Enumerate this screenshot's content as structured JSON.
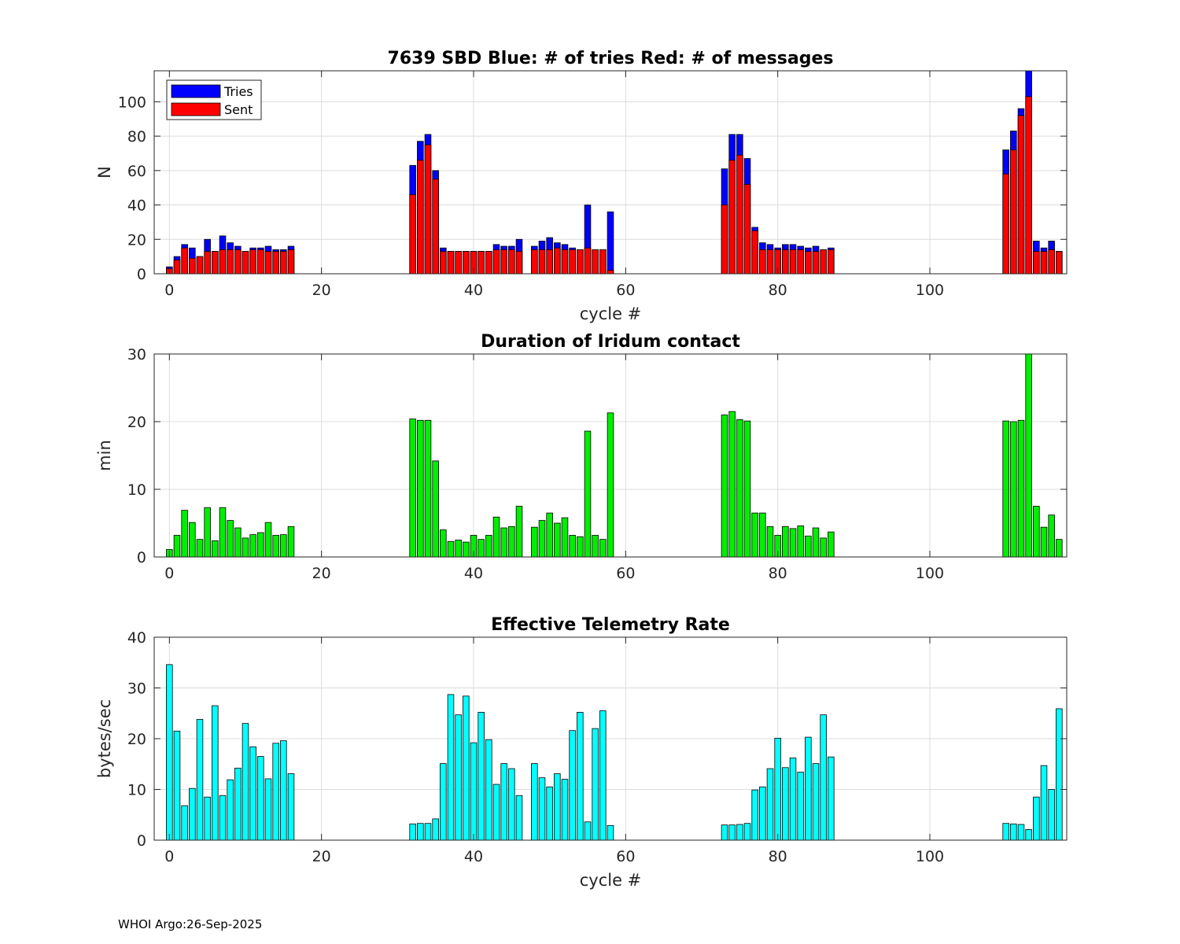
{
  "footer": "WHOI Argo:26-Sep-2025",
  "chart_data": [
    {
      "type": "bar",
      "title": "7639 SBD  Blue: # of tries   Red: # of messages",
      "xlabel": "cycle #",
      "ylabel": "N",
      "xlim": [
        -2,
        118
      ],
      "ylim": [
        0,
        118
      ],
      "xticks": [
        0,
        20,
        40,
        60,
        80,
        100
      ],
      "yticks": [
        0,
        20,
        40,
        60,
        80,
        100
      ],
      "grid": true,
      "legend": {
        "position": "top-left",
        "entries": [
          {
            "label": "Tries",
            "color": "#0000ff"
          },
          {
            "label": "Sent",
            "color": "#ff0000"
          }
        ]
      },
      "series": [
        {
          "name": "Tries",
          "color": "#0000ff",
          "overlay": true,
          "points": [
            [
              0,
              4
            ],
            [
              1,
              10
            ],
            [
              2,
              17
            ],
            [
              3,
              15
            ],
            [
              4,
              10
            ],
            [
              5,
              20
            ],
            [
              6,
              13
            ],
            [
              7,
              22
            ],
            [
              8,
              18
            ],
            [
              9,
              16
            ],
            [
              10,
              13
            ],
            [
              11,
              15
            ],
            [
              12,
              15
            ],
            [
              13,
              16
            ],
            [
              14,
              14
            ],
            [
              15,
              14
            ],
            [
              16,
              16
            ],
            [
              32,
              63
            ],
            [
              33,
              77
            ],
            [
              34,
              81
            ],
            [
              35,
              60
            ],
            [
              36,
              15
            ],
            [
              37,
              13
            ],
            [
              38,
              13
            ],
            [
              39,
              13
            ],
            [
              40,
              13
            ],
            [
              41,
              13
            ],
            [
              42,
              13
            ],
            [
              43,
              17
            ],
            [
              44,
              16
            ],
            [
              45,
              16
            ],
            [
              46,
              20
            ],
            [
              48,
              16
            ],
            [
              49,
              19
            ],
            [
              50,
              21
            ],
            [
              51,
              18
            ],
            [
              52,
              17
            ],
            [
              53,
              15
            ],
            [
              54,
              14
            ],
            [
              55,
              40
            ],
            [
              56,
              14
            ],
            [
              57,
              14
            ],
            [
              58,
              36
            ],
            [
              73,
              61
            ],
            [
              74,
              81
            ],
            [
              75,
              81
            ],
            [
              76,
              67
            ],
            [
              77,
              27
            ],
            [
              78,
              18
            ],
            [
              79,
              17
            ],
            [
              80,
              15
            ],
            [
              81,
              17
            ],
            [
              82,
              17
            ],
            [
              83,
              16
            ],
            [
              84,
              15
            ],
            [
              85,
              16
            ],
            [
              86,
              14
            ],
            [
              87,
              15
            ],
            [
              110,
              72
            ],
            [
              111,
              83
            ],
            [
              112,
              96
            ],
            [
              113,
              118
            ],
            [
              114,
              19
            ],
            [
              115,
              15
            ],
            [
              116,
              19
            ],
            [
              117,
              13
            ]
          ]
        },
        {
          "name": "Sent",
          "color": "#ff0000",
          "points": [
            [
              0,
              3
            ],
            [
              1,
              8
            ],
            [
              2,
              15
            ],
            [
              3,
              9
            ],
            [
              4,
              10
            ],
            [
              5,
              13
            ],
            [
              6,
              13
            ],
            [
              7,
              14
            ],
            [
              8,
              14
            ],
            [
              9,
              14
            ],
            [
              10,
              13
            ],
            [
              11,
              14
            ],
            [
              12,
              14
            ],
            [
              13,
              13
            ],
            [
              14,
              13
            ],
            [
              15,
              13
            ],
            [
              16,
              14
            ],
            [
              32,
              46
            ],
            [
              33,
              66
            ],
            [
              34,
              75
            ],
            [
              35,
              55
            ],
            [
              36,
              13
            ],
            [
              37,
              13
            ],
            [
              38,
              13
            ],
            [
              39,
              13
            ],
            [
              40,
              13
            ],
            [
              41,
              13
            ],
            [
              42,
              13
            ],
            [
              43,
              14
            ],
            [
              44,
              14
            ],
            [
              45,
              14
            ],
            [
              46,
              13
            ],
            [
              48,
              14
            ],
            [
              49,
              14
            ],
            [
              50,
              14
            ],
            [
              51,
              15
            ],
            [
              52,
              14
            ],
            [
              53,
              14
            ],
            [
              54,
              14
            ],
            [
              55,
              15
            ],
            [
              56,
              14
            ],
            [
              57,
              14
            ],
            [
              58,
              2
            ],
            [
              73,
              40
            ],
            [
              74,
              66
            ],
            [
              75,
              69
            ],
            [
              76,
              52
            ],
            [
              77,
              25
            ],
            [
              78,
              14
            ],
            [
              79,
              14
            ],
            [
              80,
              14
            ],
            [
              81,
              14
            ],
            [
              82,
              14
            ],
            [
              83,
              14
            ],
            [
              84,
              13
            ],
            [
              85,
              13
            ],
            [
              86,
              14
            ],
            [
              87,
              14
            ],
            [
              110,
              58
            ],
            [
              111,
              72
            ],
            [
              112,
              92
            ],
            [
              113,
              103
            ],
            [
              114,
              13
            ],
            [
              115,
              13
            ],
            [
              116,
              14
            ],
            [
              117,
              13
            ]
          ]
        }
      ]
    },
    {
      "type": "bar",
      "title": "Duration of Iridum contact",
      "xlabel": "",
      "ylabel": "min",
      "xlim": [
        -2,
        118
      ],
      "ylim": [
        0,
        30
      ],
      "xticks": [
        0,
        20,
        40,
        60,
        80,
        100
      ],
      "yticks": [
        0,
        10,
        20,
        30
      ],
      "grid": true,
      "series": [
        {
          "name": "Duration",
          "color": "#00ee00",
          "points": [
            [
              0,
              1.1
            ],
            [
              1,
              3.2
            ],
            [
              2,
              6.9
            ],
            [
              3,
              5.1
            ],
            [
              4,
              2.6
            ],
            [
              5,
              7.3
            ],
            [
              6,
              2.4
            ],
            [
              7,
              7.3
            ],
            [
              8,
              5.4
            ],
            [
              9,
              4.3
            ],
            [
              10,
              2.8
            ],
            [
              11,
              3.3
            ],
            [
              12,
              3.6
            ],
            [
              13,
              5.1
            ],
            [
              14,
              3.2
            ],
            [
              15,
              3.3
            ],
            [
              16,
              4.5
            ],
            [
              32,
              20.4
            ],
            [
              33,
              20.2
            ],
            [
              34,
              20.2
            ],
            [
              35,
              14.2
            ],
            [
              36,
              4.0
            ],
            [
              37,
              2.3
            ],
            [
              38,
              2.5
            ],
            [
              39,
              2.2
            ],
            [
              40,
              3.2
            ],
            [
              41,
              2.6
            ],
            [
              42,
              3.2
            ],
            [
              43,
              5.9
            ],
            [
              44,
              4.3
            ],
            [
              45,
              4.5
            ],
            [
              46,
              7.5
            ],
            [
              48,
              4.4
            ],
            [
              49,
              5.4
            ],
            [
              50,
              6.5
            ],
            [
              51,
              5.0
            ],
            [
              52,
              5.8
            ],
            [
              53,
              3.2
            ],
            [
              54,
              3.0
            ],
            [
              55,
              18.6
            ],
            [
              56,
              3.2
            ],
            [
              57,
              2.6
            ],
            [
              58,
              21.3
            ],
            [
              73,
              21.0
            ],
            [
              74,
              21.5
            ],
            [
              75,
              20.3
            ],
            [
              76,
              20.1
            ],
            [
              77,
              6.5
            ],
            [
              78,
              6.5
            ],
            [
              79,
              4.5
            ],
            [
              80,
              3.2
            ],
            [
              81,
              4.5
            ],
            [
              82,
              4.2
            ],
            [
              83,
              4.6
            ],
            [
              84,
              3.1
            ],
            [
              85,
              4.3
            ],
            [
              86,
              2.8
            ],
            [
              87,
              3.7
            ],
            [
              110,
              20.1
            ],
            [
              111,
              20.0
            ],
            [
              112,
              20.2
            ],
            [
              113,
              30.0
            ],
            [
              114,
              7.5
            ],
            [
              115,
              4.4
            ],
            [
              116,
              6.2
            ],
            [
              117,
              2.6
            ]
          ]
        }
      ]
    },
    {
      "type": "bar",
      "title": "Effective Telemetry Rate",
      "xlabel": "cycle #",
      "ylabel": "bytes/sec",
      "xlim": [
        -2,
        118
      ],
      "ylim": [
        0,
        40
      ],
      "xticks": [
        0,
        20,
        40,
        60,
        80,
        100
      ],
      "yticks": [
        0,
        10,
        20,
        30,
        40
      ],
      "grid": true,
      "series": [
        {
          "name": "Rate",
          "color": "#00ffff",
          "points": [
            [
              0,
              34.6
            ],
            [
              1,
              21.5
            ],
            [
              2,
              6.8
            ],
            [
              3,
              10.2
            ],
            [
              4,
              23.8
            ],
            [
              5,
              8.5
            ],
            [
              6,
              26.5
            ],
            [
              7,
              8.8
            ],
            [
              8,
              11.9
            ],
            [
              9,
              14.2
            ],
            [
              10,
              23.0
            ],
            [
              11,
              18.4
            ],
            [
              12,
              16.5
            ],
            [
              13,
              12.1
            ],
            [
              14,
              19.1
            ],
            [
              15,
              19.6
            ],
            [
              16,
              13.1
            ],
            [
              32,
              3.2
            ],
            [
              33,
              3.3
            ],
            [
              34,
              3.3
            ],
            [
              35,
              4.2
            ],
            [
              36,
              15.1
            ],
            [
              37,
              28.7
            ],
            [
              38,
              24.7
            ],
            [
              39,
              28.4
            ],
            [
              40,
              19.2
            ],
            [
              41,
              25.2
            ],
            [
              42,
              19.8
            ],
            [
              43,
              11.0
            ],
            [
              44,
              15.1
            ],
            [
              45,
              14.1
            ],
            [
              46,
              8.8
            ],
            [
              48,
              15.1
            ],
            [
              49,
              12.3
            ],
            [
              50,
              10.5
            ],
            [
              51,
              13.1
            ],
            [
              52,
              12.0
            ],
            [
              53,
              21.6
            ],
            [
              54,
              25.2
            ],
            [
              55,
              3.6
            ],
            [
              56,
              22.0
            ],
            [
              57,
              25.5
            ],
            [
              58,
              2.9
            ],
            [
              73,
              3.0
            ],
            [
              74,
              3.0
            ],
            [
              75,
              3.1
            ],
            [
              76,
              3.3
            ],
            [
              77,
              9.9
            ],
            [
              78,
              10.5
            ],
            [
              79,
              14.1
            ],
            [
              80,
              20.1
            ],
            [
              81,
              14.3
            ],
            [
              82,
              16.2
            ],
            [
              83,
              13.4
            ],
            [
              84,
              20.3
            ],
            [
              85,
              15.1
            ],
            [
              86,
              24.7
            ],
            [
              87,
              16.4
            ],
            [
              110,
              3.3
            ],
            [
              111,
              3.2
            ],
            [
              112,
              3.1
            ],
            [
              113,
              2.1
            ],
            [
              114,
              8.5
            ],
            [
              115,
              14.7
            ],
            [
              116,
              10.0
            ],
            [
              117,
              25.9
            ]
          ]
        }
      ]
    }
  ]
}
